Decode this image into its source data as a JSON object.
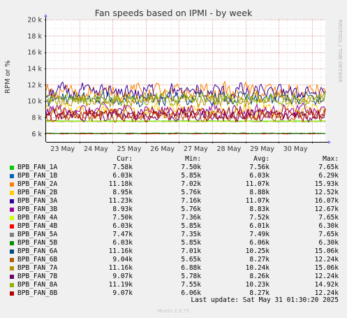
{
  "chart_data": {
    "type": "line",
    "title": "Fan speeds based on IPMI - by week",
    "ylabel": "RPM or %",
    "watermark": "RRDTOOL / TOBI OETIKER",
    "ylim": [
      5000,
      20000
    ],
    "yticks": [
      {
        "value": 6000,
        "label": "6 k"
      },
      {
        "value": 8000,
        "label": "8 k"
      },
      {
        "value": 10000,
        "label": "10 k"
      },
      {
        "value": 12000,
        "label": "12 k"
      },
      {
        "value": 14000,
        "label": "14 k"
      },
      {
        "value": 16000,
        "label": "16 k"
      },
      {
        "value": 18000,
        "label": "18 k"
      },
      {
        "value": 20000,
        "label": "20 k"
      }
    ],
    "x_days": [
      "23 May",
      "24 May",
      "25 May",
      "26 May",
      "27 May",
      "28 May",
      "29 May",
      "30 May"
    ],
    "x_range_days": [
      0,
      8.4
    ],
    "grid": true,
    "legend_placement": "bottom",
    "legend_headers": {
      "cur": "Cur:",
      "min": "Min:",
      "avg": "Avg:",
      "max": "Max:"
    },
    "series": [
      {
        "name": "BPB_FAN_1A",
        "color": "#00CC00",
        "cur": "7.58k",
        "min": "7.50k",
        "avg": "7.56k",
        "max": "7.65k",
        "cur_v": 7580,
        "min_v": 7500,
        "avg_v": 7560,
        "max_v": 7650
      },
      {
        "name": "BPB_FAN_1B",
        "color": "#0066B3",
        "cur": "6.03k",
        "min": "5.85k",
        "avg": "6.03k",
        "max": "6.29k",
        "cur_v": 6030,
        "min_v": 5850,
        "avg_v": 6030,
        "max_v": 6290
      },
      {
        "name": "BPB_FAN_2A",
        "color": "#FF8000",
        "cur": "11.18k",
        "min": "7.02k",
        "avg": "11.07k",
        "max": "15.93k",
        "cur_v": 11180,
        "min_v": 7020,
        "avg_v": 11070,
        "max_v": 15930
      },
      {
        "name": "BPB_FAN_2B",
        "color": "#FFCC00",
        "cur": "8.95k",
        "min": "5.76k",
        "avg": "8.88k",
        "max": "12.52k",
        "cur_v": 8950,
        "min_v": 5760,
        "avg_v": 8880,
        "max_v": 12520
      },
      {
        "name": "BPB_FAN_3A",
        "color": "#330099",
        "cur": "11.23k",
        "min": "7.16k",
        "avg": "11.07k",
        "max": "16.07k",
        "cur_v": 11230,
        "min_v": 7160,
        "avg_v": 11070,
        "max_v": 16070
      },
      {
        "name": "BPB_FAN_3B",
        "color": "#990099",
        "cur": "8.93k",
        "min": "5.76k",
        "avg": "8.83k",
        "max": "12.67k",
        "cur_v": 8930,
        "min_v": 5760,
        "avg_v": 8830,
        "max_v": 12670
      },
      {
        "name": "BPB_FAN_4A",
        "color": "#CCFF00",
        "cur": "7.50k",
        "min": "7.36k",
        "avg": "7.52k",
        "max": "7.65k",
        "cur_v": 7500,
        "min_v": 7360,
        "avg_v": 7520,
        "max_v": 7650
      },
      {
        "name": "BPB_FAN_4B",
        "color": "#FF0000",
        "cur": "6.03k",
        "min": "5.85k",
        "avg": "6.01k",
        "max": "6.30k",
        "cur_v": 6030,
        "min_v": 5850,
        "avg_v": 6010,
        "max_v": 6300
      },
      {
        "name": "BPB_FAN_5A",
        "color": "#808080",
        "cur": "7.47k",
        "min": "7.35k",
        "avg": "7.49k",
        "max": "7.65k",
        "cur_v": 7470,
        "min_v": 7350,
        "avg_v": 7490,
        "max_v": 7650
      },
      {
        "name": "BPB_FAN_5B",
        "color": "#008F00",
        "cur": "6.03k",
        "min": "5.85k",
        "avg": "6.06k",
        "max": "6.30k",
        "cur_v": 6030,
        "min_v": 5850,
        "avg_v": 6060,
        "max_v": 6300
      },
      {
        "name": "BPB_FAN_6A",
        "color": "#00487D",
        "cur": "11.16k",
        "min": "7.01k",
        "avg": "10.25k",
        "max": "15.06k",
        "cur_v": 11160,
        "min_v": 7010,
        "avg_v": 10250,
        "max_v": 15060
      },
      {
        "name": "BPB_FAN_6B",
        "color": "#B35A00",
        "cur": "9.04k",
        "min": "5.65k",
        "avg": "8.27k",
        "max": "12.24k",
        "cur_v": 9040,
        "min_v": 5650,
        "avg_v": 8270,
        "max_v": 12240
      },
      {
        "name": "BPB_FAN_7A",
        "color": "#B38F00",
        "cur": "11.16k",
        "min": "6.88k",
        "avg": "10.24k",
        "max": "15.06k",
        "cur_v": 11160,
        "min_v": 6880,
        "avg_v": 10240,
        "max_v": 15060
      },
      {
        "name": "BPB_FAN_7B",
        "color": "#6B006B",
        "cur": "9.07k",
        "min": "5.78k",
        "avg": "8.26k",
        "max": "12.24k",
        "cur_v": 9070,
        "min_v": 5780,
        "avg_v": 8260,
        "max_v": 12240
      },
      {
        "name": "BPB_FAN_8A",
        "color": "#8FB300",
        "cur": "11.19k",
        "min": "7.55k",
        "avg": "10.23k",
        "max": "14.92k",
        "cur_v": 11190,
        "min_v": 7550,
        "avg_v": 10230,
        "max_v": 14920
      },
      {
        "name": "BPB_FAN_8B",
        "color": "#B30000",
        "cur": "9.07k",
        "min": "6.06k",
        "avg": "8.27k",
        "max": "12.24k",
        "cur_v": 9070,
        "min_v": 6060,
        "avg_v": 8270,
        "max_v": 12240
      }
    ]
  },
  "footer": {
    "last_update": "Last update: Sat May 31 01:30:20 2025",
    "generator": "Munin 2.0.75"
  }
}
